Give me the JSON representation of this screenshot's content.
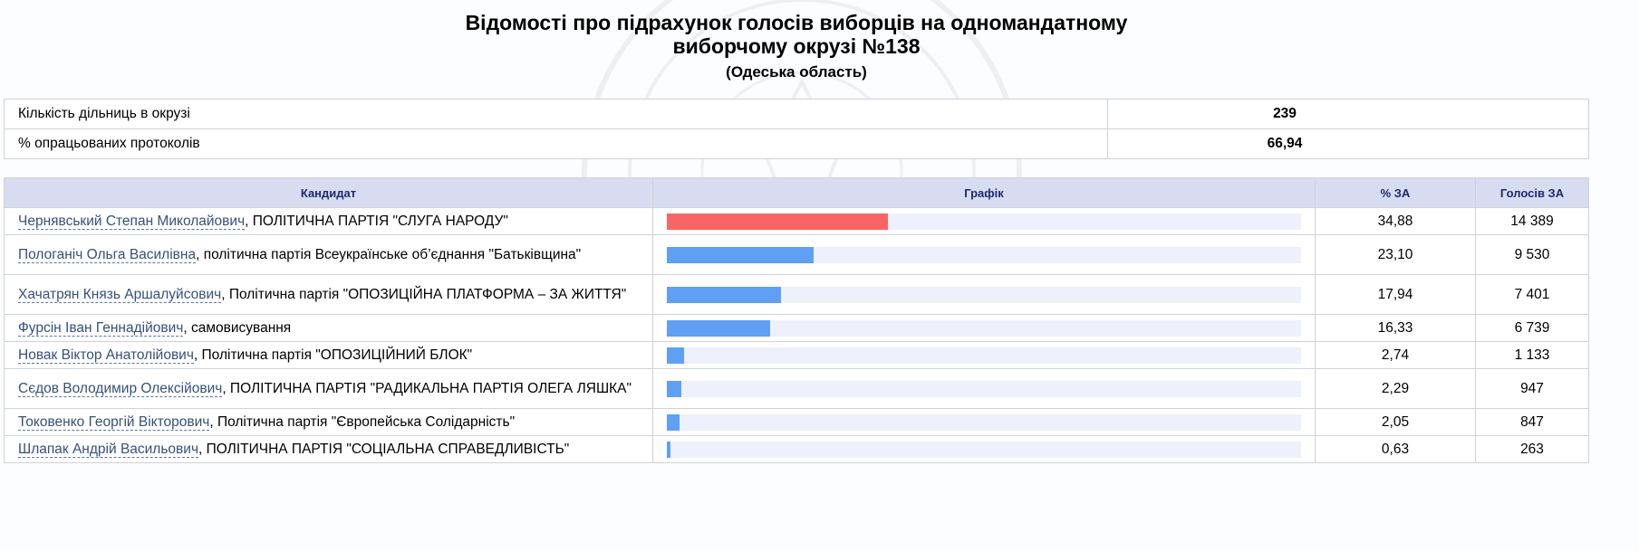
{
  "header": {
    "title_line1": "Відомості про підрахунок голосів виборців на одномандатному",
    "title_line2": "виборчому окрузі №138",
    "region": "(Одеська область)"
  },
  "summary": [
    {
      "label": "Кількість дільниць в окрузі",
      "value": "239"
    },
    {
      "label": "% опрацьованих протоколів",
      "value": "66,94"
    }
  ],
  "table": {
    "headers": {
      "candidate": "Кандидат",
      "chart": "Графік",
      "percent": "% ЗА",
      "votes": "Голосів ЗА"
    },
    "bar_colors": {
      "leader": "#fb6464",
      "other": "#5fa0f5",
      "track": "#eef0fb"
    },
    "rows": [
      {
        "name": "Чернявський Степан Миколайович",
        "party": ", ПОЛІТИЧНА ПАРТІЯ \"СЛУГА НАРОДУ\"",
        "percent": "34,88",
        "percent_value": 34.88,
        "votes": "14 389"
      },
      {
        "name": "Пологаніч Ольга Василівна",
        "party": ", політична партія Всеукраїнське об’єднання \"Батьківщина\"",
        "percent": "23,10",
        "percent_value": 23.1,
        "votes": "9 530"
      },
      {
        "name": "Хачатрян Князь Аршалуйсович",
        "party": ", Політична партія \"ОПОЗИЦІЙНА ПЛАТФОРМА – ЗА ЖИТТЯ\"",
        "percent": "17,94",
        "percent_value": 17.94,
        "votes": "7 401"
      },
      {
        "name": "Фурсін Іван Геннадійович",
        "party": ", самовисування",
        "percent": "16,33",
        "percent_value": 16.33,
        "votes": "6 739"
      },
      {
        "name": "Новак Віктор Анатолійович",
        "party": ", Політична партія \"ОПОЗИЦІЙНИЙ БЛОК\"",
        "percent": "2,74",
        "percent_value": 2.74,
        "votes": "1 133"
      },
      {
        "name": "Сєдов Володимир Олексійович",
        "party": ", ПОЛІТИЧНА ПАРТІЯ \"РАДИКАЛЬНА ПАРТІЯ ОЛЕГА ЛЯШКА\"",
        "percent": "2,29",
        "percent_value": 2.29,
        "votes": "947"
      },
      {
        "name": "Токовенко Георгій Вікторович",
        "party": ", Політична партія \"Європейська Солідарність\"",
        "percent": "2,05",
        "percent_value": 2.05,
        "votes": "847"
      },
      {
        "name": "Шлапак Андрій Васильович",
        "party": ", ПОЛІТИЧНА ПАРТІЯ \"СОЦІАЛЬНА СПРАВЕДЛИВІСТЬ\"",
        "percent": "0,63",
        "percent_value": 0.63,
        "votes": "263"
      }
    ]
  }
}
